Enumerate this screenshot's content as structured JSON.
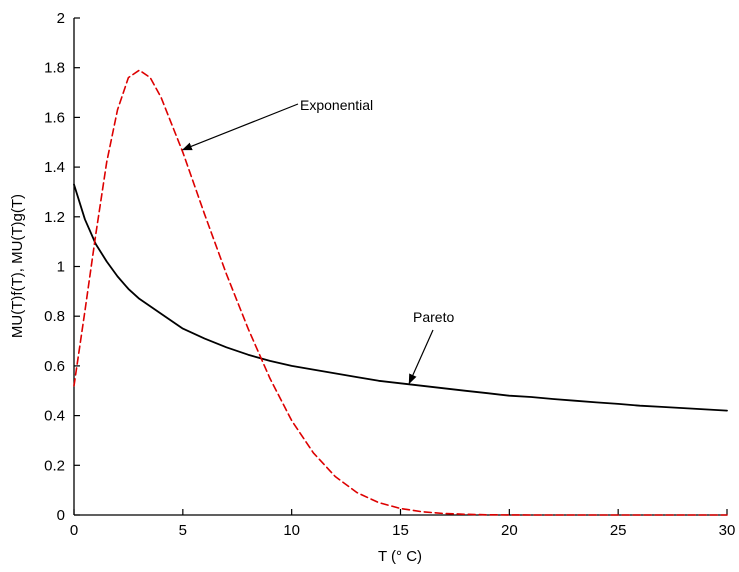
{
  "chart_data": {
    "type": "line",
    "title": "",
    "xlabel": "T (° C)",
    "ylabel": "MU(T)f(T), MU(T)g(T)",
    "xlim": [
      0,
      30
    ],
    "ylim": [
      0,
      2
    ],
    "x_ticks": [
      "0",
      "5",
      "10",
      "15",
      "20",
      "25",
      "30"
    ],
    "y_ticks": [
      "0",
      "0.2",
      "0.4",
      "0.6",
      "0.8",
      "1",
      "1.2",
      "1.4",
      "1.6",
      "1.8",
      "2"
    ],
    "grid": false,
    "legend": "none",
    "series": [
      {
        "name": "Pareto",
        "color": "#000000",
        "style": "solid",
        "x": [
          0,
          0.5,
          1,
          1.5,
          2,
          2.5,
          3,
          4,
          5,
          6,
          7,
          8,
          9,
          10,
          11,
          12,
          13,
          14,
          15,
          16,
          17,
          18,
          19,
          20,
          21,
          22,
          23,
          24,
          25,
          26,
          27,
          28,
          29,
          30
        ],
        "values": [
          1.33,
          1.19,
          1.09,
          1.02,
          0.96,
          0.91,
          0.87,
          0.81,
          0.75,
          0.71,
          0.675,
          0.645,
          0.62,
          0.6,
          0.585,
          0.57,
          0.555,
          0.54,
          0.53,
          0.52,
          0.51,
          0.5,
          0.49,
          0.48,
          0.475,
          0.467,
          0.46,
          0.453,
          0.447,
          0.44,
          0.435,
          0.43,
          0.425,
          0.42
        ]
      },
      {
        "name": "Exponential",
        "color": "#dd0000",
        "style": "dashed",
        "x": [
          0,
          0.5,
          1,
          1.5,
          2,
          2.5,
          3,
          3.5,
          4,
          5,
          6,
          7,
          8,
          9,
          10,
          11,
          12,
          13,
          14,
          15,
          16,
          17,
          18,
          19,
          20,
          21,
          22,
          25,
          30
        ],
        "values": [
          0.52,
          0.82,
          1.13,
          1.42,
          1.63,
          1.76,
          1.79,
          1.76,
          1.68,
          1.46,
          1.21,
          0.97,
          0.75,
          0.55,
          0.38,
          0.25,
          0.155,
          0.09,
          0.05,
          0.026,
          0.013,
          0.006,
          0.003,
          0.001,
          0.0005,
          0.0002,
          0.0001,
          0,
          0
        ]
      }
    ],
    "annotations": [
      {
        "text": "Exponential",
        "points_to": "Exponential",
        "target_x": 5.0,
        "target_y": 1.47
      },
      {
        "text": "Pareto",
        "points_to": "Pareto",
        "target_x": 15.4,
        "target_y": 0.53
      }
    ]
  }
}
